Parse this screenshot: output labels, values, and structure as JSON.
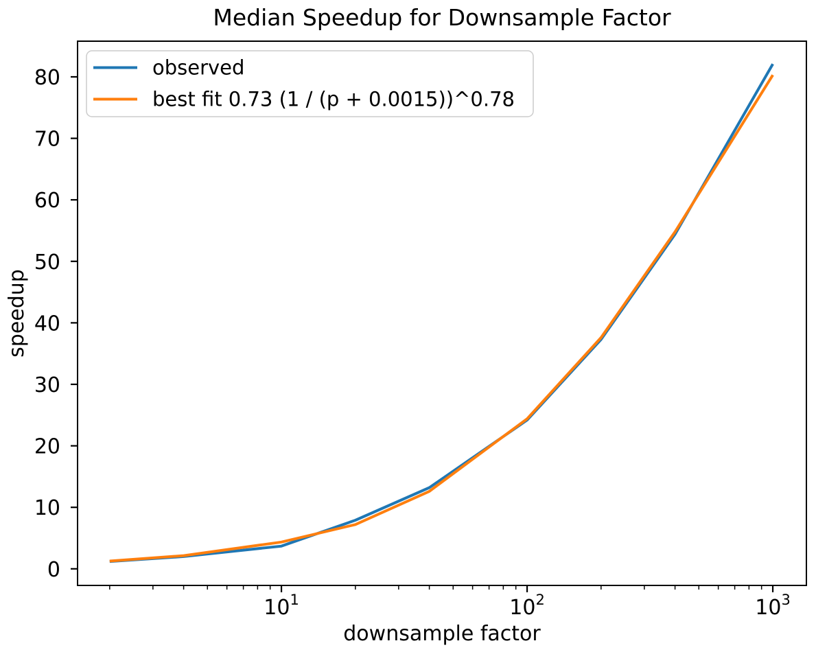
{
  "chart_data": {
    "type": "line",
    "title": "Median Speedup for Downsample Factor",
    "xlabel": "downsample factor",
    "ylabel": "speedup",
    "x_scale": "log",
    "grid": false,
    "x": [
      2,
      4,
      10,
      20,
      40,
      100,
      200,
      400,
      1000
    ],
    "series": [
      {
        "name": "observed",
        "color": "#1f77b4",
        "values": [
          1.2,
          2.0,
          3.7,
          7.9,
          13.2,
          24.2,
          37.3,
          54.4,
          82.1
        ]
      },
      {
        "name": "best fit 0.73 (1 / (p + 0.0015))^0.78",
        "color": "#ff7f0e",
        "values": [
          1.26,
          2.14,
          4.35,
          7.2,
          12.6,
          24.4,
          37.6,
          54.8,
          80.3
        ]
      }
    ],
    "xlim": [
      1.48,
      1370
    ],
    "ylim": [
      -2.7,
      85.8
    ],
    "x_major_ticks": [
      {
        "value": 10,
        "base": "10",
        "exp": "1"
      },
      {
        "value": 100,
        "base": "10",
        "exp": "2"
      },
      {
        "value": 1000,
        "base": "10",
        "exp": "3"
      }
    ],
    "y_ticks": [
      0,
      10,
      20,
      30,
      40,
      50,
      60,
      70,
      80
    ],
    "legend": {
      "position": "upper left",
      "entries": [
        "observed",
        "best fit 0.73 (1 / (p + 0.0015))^0.78"
      ]
    },
    "colors": {
      "background": "#ffffff",
      "axes": "#000000",
      "legend_border": "#cccccc"
    }
  }
}
